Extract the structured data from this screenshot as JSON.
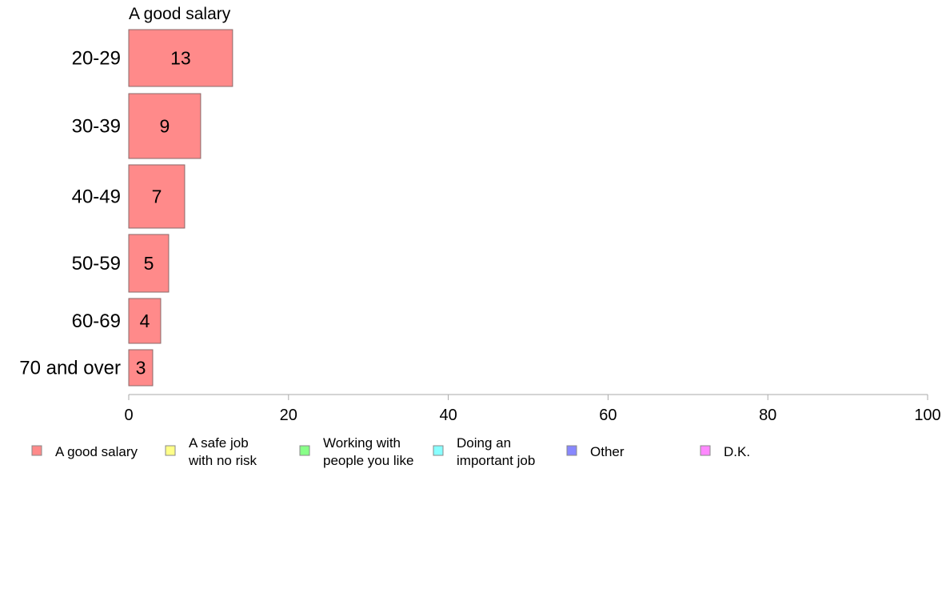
{
  "chart_data": {
    "type": "bar",
    "orientation": "horizontal",
    "stacked": true,
    "panel_label": "A good salary",
    "categories": [
      "20-29",
      "30-39",
      "40-49",
      "50-59",
      "60-69",
      "70 and over"
    ],
    "series": [
      {
        "name": "A good salary",
        "color": "#ff8a8a",
        "values": [
          13,
          9,
          7,
          5,
          4,
          3
        ]
      }
    ],
    "xlim": [
      0,
      100
    ],
    "xticks": [
      "0",
      "20",
      "40",
      "60",
      "80",
      "100"
    ],
    "grid": false,
    "legend_position": "bottom",
    "legend": [
      {
        "label_lines": [
          "A good salary"
        ],
        "color": "#ff8a8a"
      },
      {
        "label_lines": [
          "A safe job",
          "with no risk"
        ],
        "color": "#ffff88"
      },
      {
        "label_lines": [
          "Working with",
          "people you like"
        ],
        "color": "#88ff88"
      },
      {
        "label_lines": [
          "Doing an",
          "important job"
        ],
        "color": "#88ffff"
      },
      {
        "label_lines": [
          "Other"
        ],
        "color": "#8888ff"
      },
      {
        "label_lines": [
          "D.K."
        ],
        "color": "#ff88ff"
      }
    ]
  }
}
